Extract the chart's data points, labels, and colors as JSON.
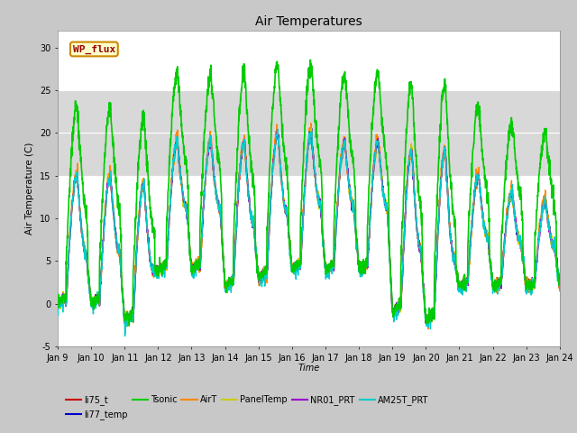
{
  "title": "Air Temperatures",
  "xlabel": "Time",
  "ylabel": "Air Temperature (C)",
  "ylim": [
    -5,
    32
  ],
  "xlim": [
    0,
    15
  ],
  "xtick_labels": [
    "Jan 9",
    "Jan 10",
    "Jan 11",
    "Jan 12",
    "Jan 13",
    "Jan 14",
    "Jan 15",
    "Jan 16",
    "Jan 17",
    "Jan 18",
    "Jan 19",
    "Jan 20",
    "Jan 21",
    "Jan 22",
    "Jan 23",
    "Jan 24"
  ],
  "ytick_vals": [
    -5,
    0,
    5,
    10,
    15,
    20,
    25,
    30
  ],
  "ytick_labels": [
    "-5",
    "0",
    "5",
    "10",
    "15",
    "20",
    "25",
    "30"
  ],
  "fig_bg": "#c8c8c8",
  "plot_bg_upper": "#ffffff",
  "plot_bg_lower": "#d8d8d8",
  "grid_color": "#aaaaaa",
  "series": {
    "li75_t": {
      "color": "#cc0000",
      "lw": 1.0
    },
    "li77_temp": {
      "color": "#0000cc",
      "lw": 1.0
    },
    "Tsonic": {
      "color": "#00cc00",
      "lw": 1.2
    },
    "AirT": {
      "color": "#ff8800",
      "lw": 1.0
    },
    "PanelTemp": {
      "color": "#cccc00",
      "lw": 1.0
    },
    "NR01_PRT": {
      "color": "#9900cc",
      "lw": 1.0
    },
    "AM25T_PRT": {
      "color": "#00cccc",
      "lw": 1.0
    }
  },
  "legend_box": {
    "label": "WP_flux",
    "facecolor": "#ffffcc",
    "edgecolor": "#cc8800",
    "textcolor": "#990000"
  },
  "shaded_band": [
    15,
    25
  ]
}
